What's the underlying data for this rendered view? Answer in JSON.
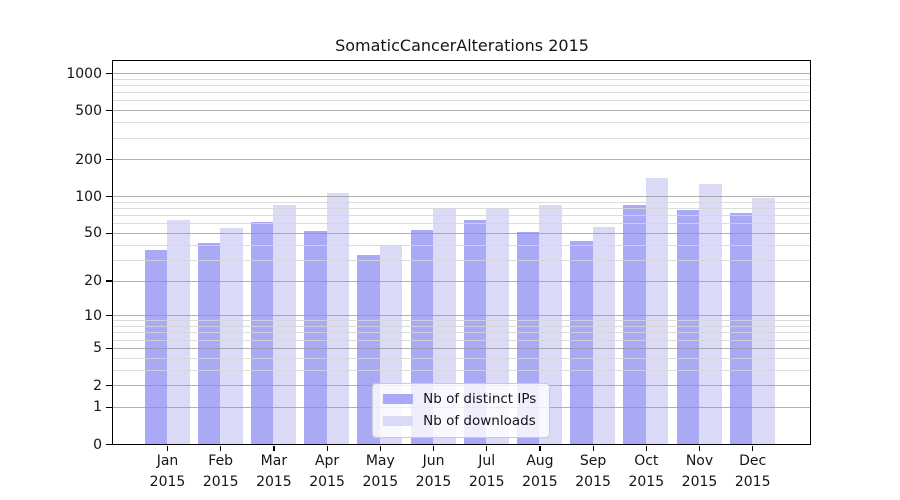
{
  "chart_data": {
    "type": "bar",
    "title": "SomaticCancerAlterations 2015",
    "categories": [
      {
        "month": "Jan",
        "year": "2015"
      },
      {
        "month": "Feb",
        "year": "2015"
      },
      {
        "month": "Mar",
        "year": "2015"
      },
      {
        "month": "Apr",
        "year": "2015"
      },
      {
        "month": "May",
        "year": "2015"
      },
      {
        "month": "Jun",
        "year": "2015"
      },
      {
        "month": "Jul",
        "year": "2015"
      },
      {
        "month": "Aug",
        "year": "2015"
      },
      {
        "month": "Sep",
        "year": "2015"
      },
      {
        "month": "Oct",
        "year": "2015"
      },
      {
        "month": "Nov",
        "year": "2015"
      },
      {
        "month": "Dec",
        "year": "2015"
      }
    ],
    "series": [
      {
        "name": "Nb of distinct IPs",
        "color": "#a9a9f5",
        "values": [
          36,
          41,
          61,
          52,
          33,
          53,
          64,
          51,
          43,
          84,
          77,
          73
        ]
      },
      {
        "name": "Nb of downloads",
        "color": "#dbdbf8",
        "values": [
          64,
          55,
          85,
          106,
          40,
          80,
          80,
          84,
          56,
          140,
          126,
          97
        ]
      }
    ],
    "y_axis": {
      "scale": "log1p",
      "major_ticks": [
        0,
        1,
        2,
        5,
        10,
        20,
        50,
        100,
        200,
        500,
        1000
      ],
      "minor_gridlines": [
        3,
        4,
        6,
        7,
        8,
        9,
        30,
        40,
        60,
        70,
        80,
        90,
        300,
        400,
        600,
        700,
        800,
        900
      ],
      "ylim": [
        0,
        1250
      ]
    },
    "grid": true,
    "legend_position": "lower center"
  },
  "colors": {
    "bar_distinct_ips": "#a9a9f5",
    "bar_downloads": "#dbdbf8",
    "grid_major": "#b5b5b5",
    "grid_minor": "#e0e0e0",
    "axis": "#000000",
    "legend_border": "#cccccc",
    "background": "#ffffff"
  }
}
